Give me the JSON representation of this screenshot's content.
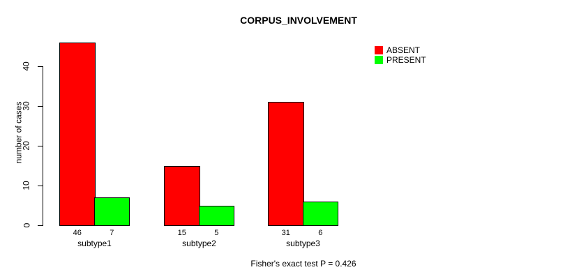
{
  "chart_data": {
    "type": "bar",
    "title": "CORPUS_INVOLVEMENT",
    "ylabel": "number of cases",
    "xlabel": "",
    "categories": [
      "subtype1",
      "subtype2",
      "subtype3"
    ],
    "series": [
      {
        "name": "ABSENT",
        "color": "#ff0000",
        "values": [
          46,
          15,
          31
        ]
      },
      {
        "name": "PRESENT",
        "color": "#00ff00",
        "values": [
          7,
          5,
          6
        ]
      }
    ],
    "bar_value_labels": [
      [
        "46",
        "7"
      ],
      [
        "15",
        "5"
      ],
      [
        "31",
        "6"
      ]
    ],
    "yticks": [
      0,
      10,
      20,
      30,
      40
    ],
    "ylim": [
      0,
      46
    ],
    "grid": false,
    "legend_position": "top-right",
    "legend": [
      "ABSENT",
      "PRESENT"
    ],
    "annotation": "Fisher's exact test P = 0.426",
    "background": "#ffffff",
    "bar_border_color": "#000000"
  }
}
